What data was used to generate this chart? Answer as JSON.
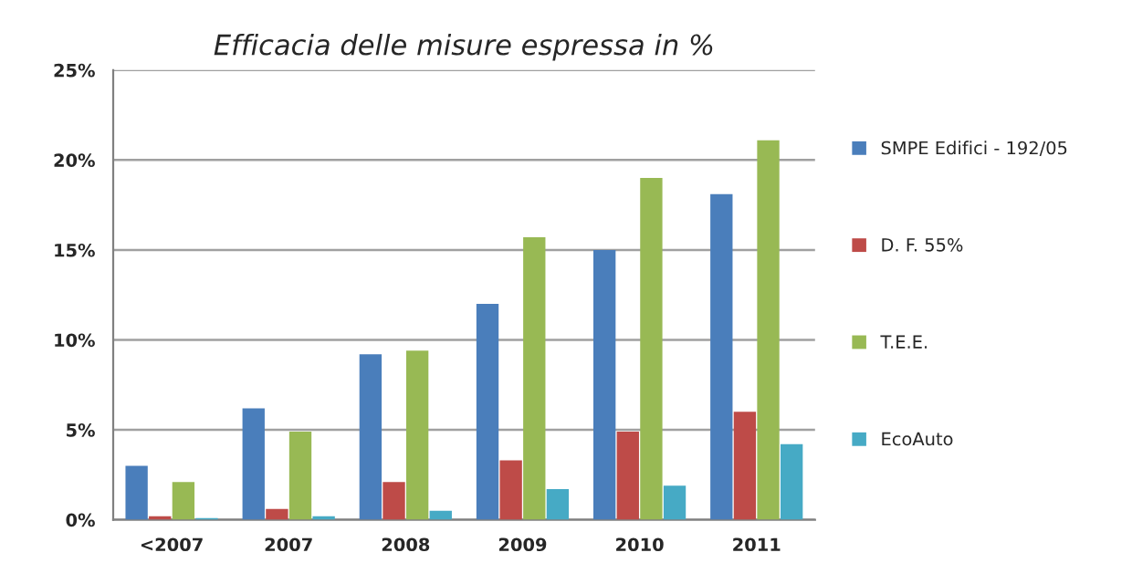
{
  "chart_data": {
    "type": "bar",
    "title": "Efficacia delle misure espressa in %",
    "categories": [
      "<2007",
      "2007",
      "2008",
      "2009",
      "2010",
      "2011"
    ],
    "series": [
      {
        "name": "SMPE Edifici - 192/05",
        "color": "#4a7ebb",
        "values": [
          3.0,
          6.2,
          9.2,
          12.0,
          15.0,
          18.1
        ]
      },
      {
        "name": "D. F. 55%",
        "color": "#be4b48",
        "values": [
          0.2,
          0.6,
          2.1,
          3.3,
          4.9,
          6.0
        ]
      },
      {
        "name": "T.E.E.",
        "color": "#98b954",
        "values": [
          2.1,
          4.9,
          9.4,
          15.7,
          19.0,
          21.1
        ]
      },
      {
        "name": "EcoAuto",
        "color": "#46aac5",
        "values": [
          0.1,
          0.2,
          0.5,
          1.7,
          1.9,
          4.2
        ]
      }
    ],
    "ylim": [
      0,
      25
    ],
    "yticks": [
      {
        "value": 0,
        "label": "0%"
      },
      {
        "value": 5,
        "label": "5%"
      },
      {
        "value": 10,
        "label": "10%"
      },
      {
        "value": 15,
        "label": "15%"
      },
      {
        "value": 20,
        "label": "20%"
      },
      {
        "value": 25,
        "label": "25%"
      }
    ],
    "grid": "y",
    "legend": "right"
  }
}
